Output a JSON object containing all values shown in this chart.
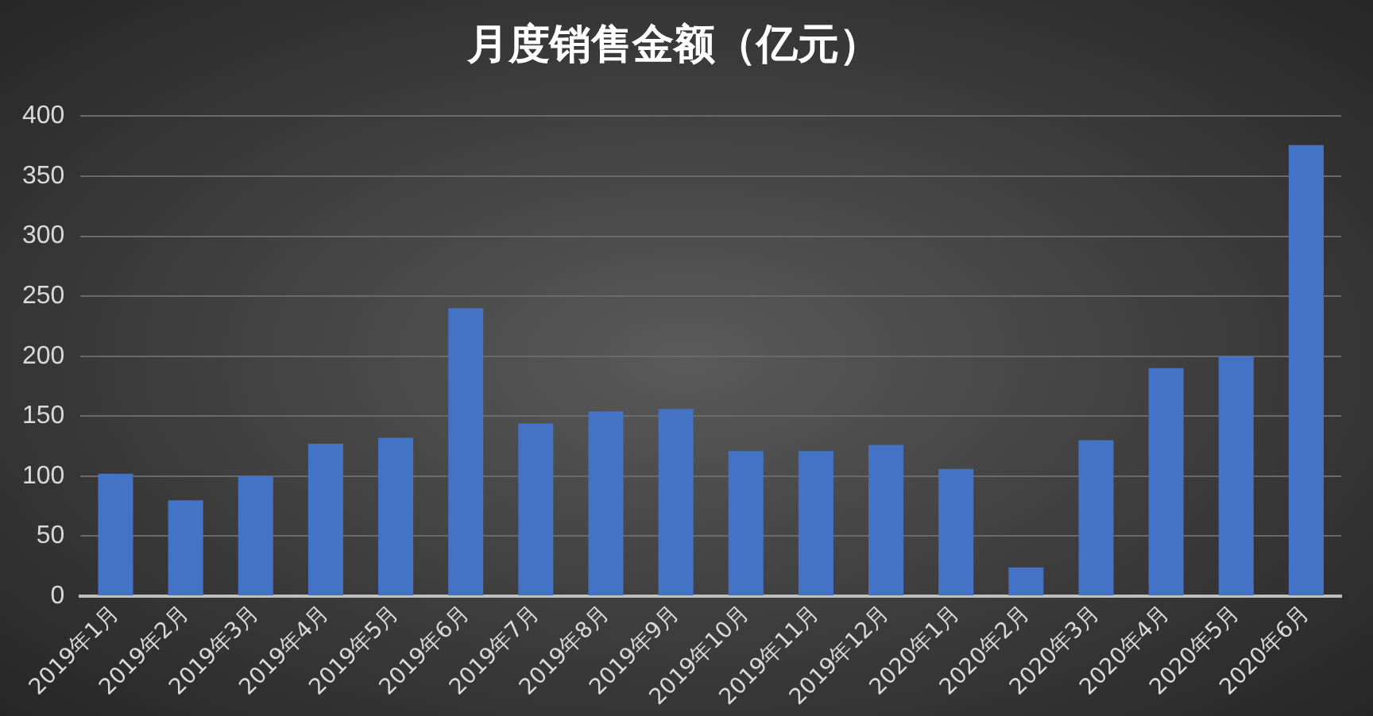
{
  "chart_data": {
    "type": "bar",
    "title": "月度销售金额（亿元）",
    "categories": [
      "2019年1月",
      "2019年2月",
      "2019年3月",
      "2019年4月",
      "2019年5月",
      "2019年6月",
      "2019年7月",
      "2019年8月",
      "2019年9月",
      "2019年10月",
      "2019年11月",
      "2019年12月",
      "2020年1月",
      "2020年2月",
      "2020年3月",
      "2020年4月",
      "2020年5月",
      "2020年6月"
    ],
    "values": [
      102,
      80,
      100,
      127,
      132,
      240,
      144,
      154,
      156,
      121,
      121,
      126,
      106,
      24,
      130,
      190,
      200,
      376
    ],
    "color": "#4472c4",
    "ylim": [
      0,
      400
    ],
    "yticks": [
      0,
      50,
      100,
      150,
      200,
      250,
      300,
      350,
      400
    ],
    "grid": "y",
    "legend": false
  }
}
